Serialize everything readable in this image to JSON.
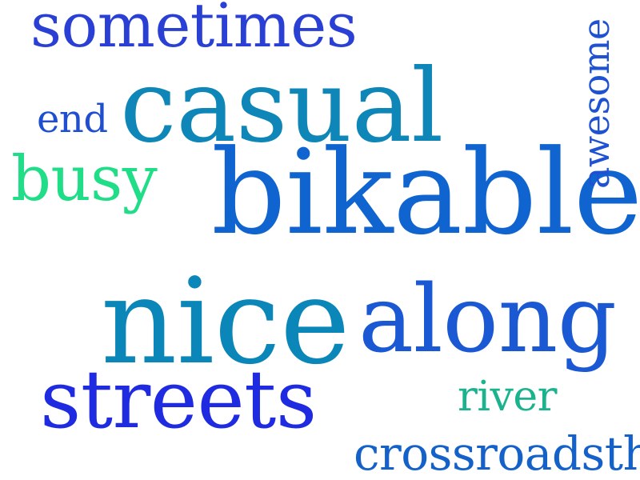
{
  "words": {
    "sometimes": {
      "text": "sometimes",
      "color": "#2a3fd4"
    },
    "casual": {
      "text": "casual",
      "color": "#0f86b8"
    },
    "end": {
      "text": "end",
      "color": "#1f4fd0"
    },
    "busy": {
      "text": "busy",
      "color": "#20dd88"
    },
    "bikable": {
      "text": "bikable",
      "color": "#0f64cf"
    },
    "awesome": {
      "text": "awesome",
      "color": "#1e52d2"
    },
    "nice": {
      "text": "nice",
      "color": "#0a86b8"
    },
    "along": {
      "text": "along",
      "color": "#1b58d3"
    },
    "streets": {
      "text": "streets",
      "color": "#1f2be0"
    },
    "river": {
      "text": "river",
      "color": "#1bb38e"
    },
    "crossroadsthe": {
      "text": "crossroadsthe",
      "color": "#1462c9"
    }
  }
}
